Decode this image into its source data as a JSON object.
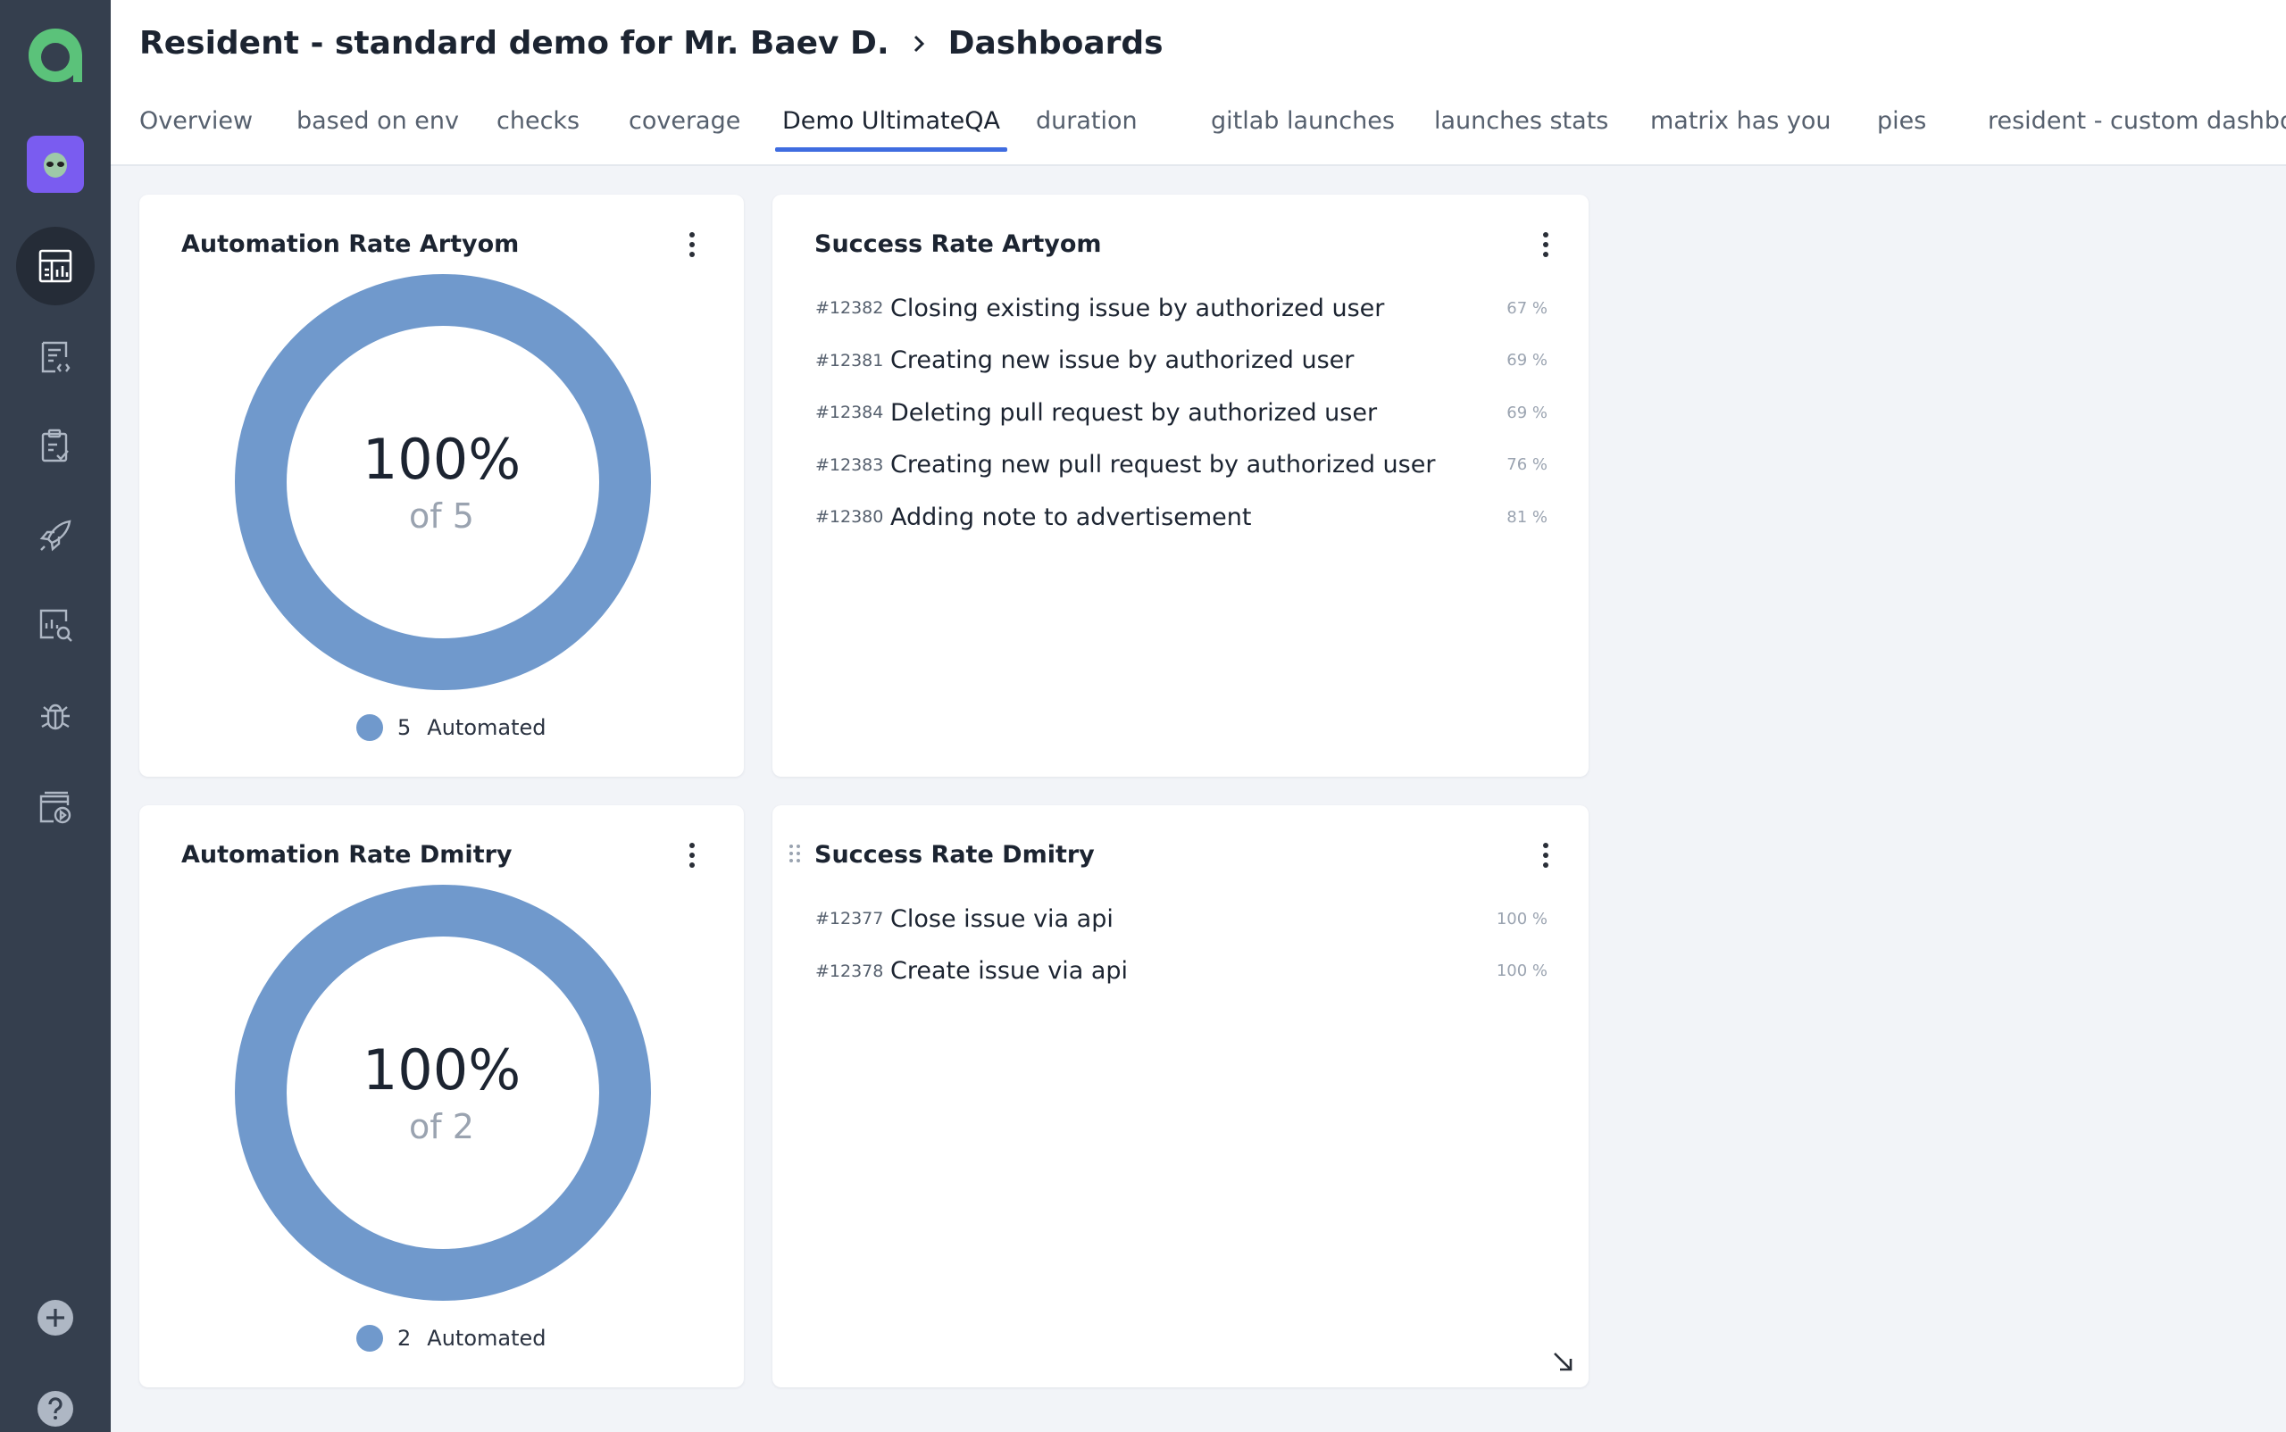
{
  "breadcrumb": {
    "project": "Resident - standard demo for Mr. Baev D.",
    "current": "Dashboards"
  },
  "tabs": [
    {
      "label": "Overview"
    },
    {
      "label": "based on env"
    },
    {
      "label": "checks"
    },
    {
      "label": "coverage"
    },
    {
      "label": "Demo UltimateQA",
      "active": true
    },
    {
      "label": "duration"
    },
    {
      "label": "gitlab launches"
    },
    {
      "label": "launches stats"
    },
    {
      "label": "matrix has you"
    },
    {
      "label": "pies"
    },
    {
      "label": "resident - custom dashboard"
    }
  ],
  "widgets": {
    "automation_artyom": {
      "title": "Automation Rate Artyom",
      "percent": "100%",
      "of": "of 5",
      "legend_count": "5",
      "legend_label": "Automated"
    },
    "success_artyom": {
      "title": "Success Rate Artyom",
      "rows": [
        {
          "id": "#12382",
          "name": "Closing existing issue by authorized user",
          "pct": "67 %"
        },
        {
          "id": "#12381",
          "name": "Creating new issue by authorized user",
          "pct": "69 %"
        },
        {
          "id": "#12384",
          "name": "Deleting pull request by authorized user",
          "pct": "69 %"
        },
        {
          "id": "#12383",
          "name": "Creating new pull request by authorized user",
          "pct": "76 %"
        },
        {
          "id": "#12380",
          "name": "Adding note to advertisement",
          "pct": "81 %"
        }
      ]
    },
    "automation_dmitry": {
      "title": "Automation Rate Dmitry",
      "percent": "100%",
      "of": "of 2",
      "legend_count": "2",
      "legend_label": "Automated"
    },
    "success_dmitry": {
      "title": "Success Rate Dmitry",
      "rows": [
        {
          "id": "#12377",
          "name": "Close issue via api",
          "pct": "100 %"
        },
        {
          "id": "#12378",
          "name": "Create issue via api",
          "pct": "100 %"
        }
      ]
    }
  },
  "colors": {
    "sidebar": "#353f4e",
    "accent": "#3f6ce0",
    "donut": "#7099cc",
    "logo": "#5bc27a",
    "avatar": "#7a5cf0"
  },
  "sidebar_icons": [
    "dashboards-icon",
    "test-cases-icon",
    "test-plans-icon",
    "launches-icon",
    "analytics-icon",
    "defects-icon",
    "jobs-icon",
    "add-icon",
    "help-icon"
  ]
}
